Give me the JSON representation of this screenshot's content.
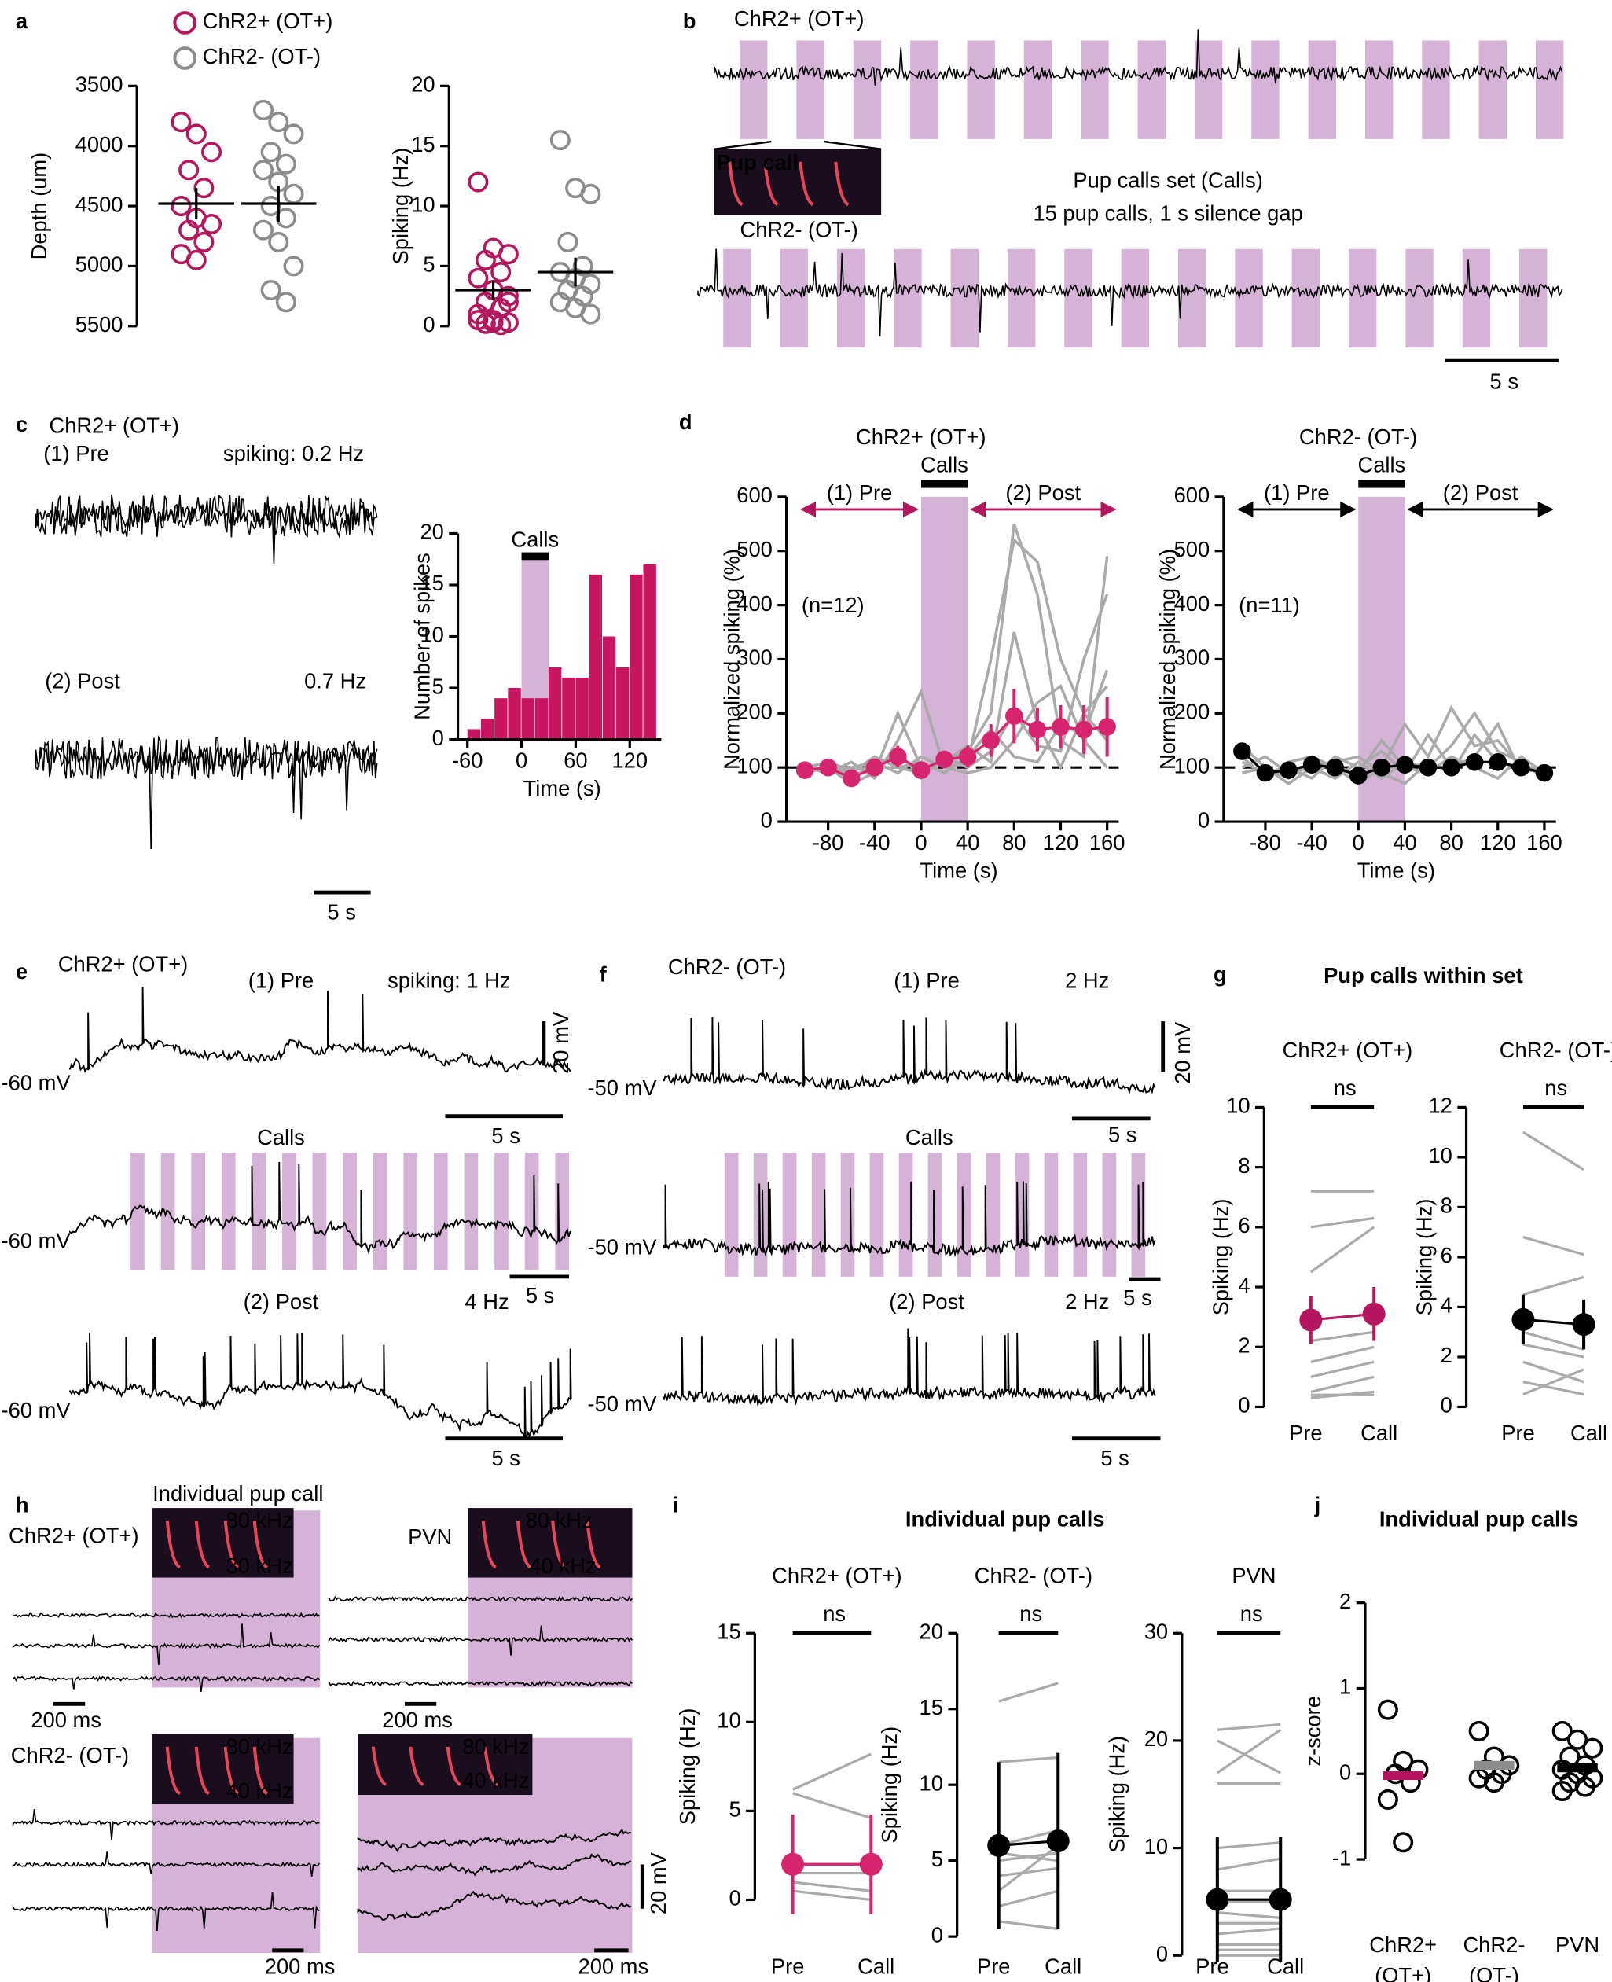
{
  "text": {
    "letters": [
      "a",
      "b",
      "c",
      "d",
      "e",
      "f",
      "g",
      "h",
      "i",
      "j"
    ],
    "b": {
      "ot_plus": "ChR2+ (OT+)",
      "ot_minus": "ChR2- (OT-)",
      "inset": "Pup call",
      "set": "Pup calls set (Calls)",
      "desc": "15 pup calls, 1 s silence gap",
      "scale": "5 s"
    },
    "c": {
      "title": "ChR2+ (OT+)",
      "pre": "(1) Pre",
      "pre_rate": "spiking: 0.2 Hz",
      "post": "(2) Post",
      "post_rate": "0.7 Hz",
      "scale": "5 s"
    },
    "e": {
      "title": "ChR2+ (OT+)",
      "pre": "(1) Pre",
      "pre_rate": "spiking: 1 Hz",
      "vscale": "20 mV",
      "vm": "-60 mV",
      "scale": "5 s",
      "calls": "Calls",
      "post": "(2) Post",
      "post_rate": "4 Hz"
    },
    "f": {
      "title": "ChR2- (OT-)",
      "pre": "(1) Pre",
      "pre_rate": "2 Hz",
      "vscale": "20 mV",
      "vm": "-50 mV",
      "scale": "5 s",
      "calls": "Calls",
      "post": "(2) Post",
      "post_rate": "2 Hz"
    },
    "g": {
      "title": "Pup calls within set"
    },
    "h": {
      "title": "Individual pup call",
      "ot_plus": "ChR2+ (OT+)",
      "ot_minus": "ChR2- (OT-)",
      "pvn": "PVN",
      "hi": "80 kHz",
      "lo30": "30 kHz",
      "lo40": "40 kHz",
      "scale": "200 ms",
      "vscale": "20 mV"
    },
    "i": {
      "title": "Individual pup calls"
    },
    "j": {
      "title": "Individual pup calls"
    }
  },
  "chart_data": [
    {
      "type": "strip",
      "ylabel": "Depth (um)",
      "ylim": [
        3500,
        5500
      ],
      "yticks": [
        3500,
        4000,
        4500,
        5000,
        5500
      ],
      "y_inverted": true,
      "legend": true,
      "series": [
        {
          "name": "ChR2+ (OT+)",
          "color": "#b5175e",
          "values": [
            3800,
            3900,
            4050,
            4200,
            4350,
            4500,
            4600,
            4650,
            4700,
            4800,
            4900,
            4950
          ],
          "mean": 4480,
          "sem": 130
        },
        {
          "name": "ChR2- (OT-)",
          "color": "#8c8c8c",
          "values": [
            3700,
            3800,
            3900,
            4050,
            4150,
            4200,
            4300,
            4400,
            4500,
            4600,
            4700,
            4800,
            5000,
            5200,
            5300
          ],
          "mean": 4480,
          "sem": 150
        }
      ]
    },
    {
      "type": "strip",
      "ylabel": "Spiking (Hz)",
      "ylim": [
        0,
        20
      ],
      "yticks": [
        0,
        5,
        10,
        15,
        20
      ],
      "series": [
        {
          "color": "#b5175e",
          "values": [
            12,
            6.5,
            6,
            5.5,
            4.5,
            4,
            3,
            2.5,
            2,
            1.5,
            1,
            0.5,
            0.3,
            0.2,
            0.1,
            0.5,
            0.3,
            2
          ],
          "mean": 3,
          "sem": 0.8
        },
        {
          "color": "#8c8c8c",
          "values": [
            15.5,
            11.5,
            11,
            7,
            5,
            4.5,
            4,
            3.5,
            3,
            2.5,
            2,
            1.5,
            1
          ],
          "mean": 4.5,
          "sem": 1.2
        }
      ]
    },
    {
      "type": "histogram",
      "ylabel": "Number of spikes",
      "xlabel": "Time (s)",
      "bins": [
        -60,
        -45,
        -30,
        -15,
        0,
        15,
        30,
        45,
        60,
        75,
        90,
        105,
        120,
        135,
        150
      ],
      "counts": [
        1,
        2,
        4,
        5,
        4,
        4,
        7,
        6,
        6,
        16,
        10,
        7,
        16,
        17
      ],
      "color": "#c8155f",
      "xlim": [
        -65,
        155
      ],
      "xticks": [
        -60,
        0,
        60,
        120
      ],
      "ylim": [
        0,
        20
      ],
      "yticks": [
        0,
        5,
        10,
        15,
        20
      ],
      "span": {
        "start": 0,
        "end": 30,
        "label": "Calls",
        "color": "#d4b3d6"
      }
    },
    {
      "type": "line",
      "title": "ChR2+ (OT+)",
      "title_color": "#b5175e",
      "xlabel": "Time (s)",
      "ylabel": "Normalized spiking (%)",
      "xlim": [
        -105,
        170
      ],
      "xticks": [
        -80,
        -40,
        0,
        40,
        80,
        120,
        160
      ],
      "ylim": [
        0,
        600
      ],
      "yticks": [
        0,
        100,
        200,
        300,
        400,
        500,
        600
      ],
      "hline": 100,
      "span": {
        "start": 0,
        "end": 40,
        "label": "Calls",
        "color": "#d4b3d6"
      },
      "annotations": {
        "pre": "(1) Pre",
        "post": "(2) Post",
        "n": "(n=12)"
      },
      "arrow_color": "#b5175e",
      "x": [
        -100,
        -80,
        -60,
        -40,
        -20,
        0,
        20,
        40,
        60,
        80,
        100,
        120,
        140,
        160
      ],
      "series": [
        {
          "color": "#aaaaaa",
          "values": [
            100,
            90,
            110,
            80,
            150,
            240,
            100,
            110,
            300,
            520,
            480,
            300,
            200,
            250
          ]
        },
        {
          "color": "#aaaaaa",
          "values": [
            95,
            100,
            90,
            120,
            100,
            90,
            110,
            130,
            200,
            550,
            420,
            150,
            120,
            490
          ]
        },
        {
          "color": "#aaaaaa",
          "values": [
            100,
            110,
            95,
            100,
            130,
            80,
            120,
            100,
            130,
            200,
            140,
            130,
            300,
            420
          ]
        },
        {
          "color": "#aaaaaa",
          "values": [
            90,
            100,
            70,
            90,
            200,
            100,
            110,
            140,
            110,
            350,
            180,
            100,
            200,
            150
          ]
        },
        {
          "color": "#aaaaaa",
          "values": [
            100,
            90,
            100,
            110,
            90,
            120,
            100,
            90,
            100,
            150,
            220,
            250,
            150,
            100
          ]
        },
        {
          "color": "#aaaaaa",
          "values": [
            105,
            95,
            85,
            100,
            100,
            110,
            90,
            120,
            170,
            120,
            110,
            180,
            160,
            280
          ]
        },
        {
          "color": "#d6246e",
          "values": [
            95,
            100,
            80,
            100,
            120,
            95,
            115,
            120,
            150,
            195,
            170,
            175,
            170,
            175
          ],
          "err": [
            10,
            10,
            12,
            15,
            20,
            15,
            15,
            20,
            30,
            50,
            40,
            40,
            45,
            55
          ]
        }
      ]
    },
    {
      "type": "line",
      "title": "ChR2- (OT-)",
      "title_color": "#000000",
      "xlabel": "Time (s)",
      "ylabel": "Normalized spiking (%)",
      "xlim": [
        -105,
        170
      ],
      "xticks": [
        -80,
        -40,
        0,
        40,
        80,
        120,
        160
      ],
      "ylim": [
        0,
        600
      ],
      "yticks": [
        0,
        100,
        200,
        300,
        400,
        500,
        600
      ],
      "hline": 100,
      "span": {
        "start": 0,
        "end": 40,
        "label": "Calls",
        "color": "#d4b3d6"
      },
      "annotations": {
        "pre": "(1) Pre",
        "post": "(2) Post",
        "n": "(n=11)"
      },
      "arrow_color": "#000000",
      "x": [
        -100,
        -80,
        -60,
        -40,
        -20,
        0,
        20,
        40,
        60,
        80,
        100,
        120,
        140,
        160
      ],
      "series": [
        {
          "color": "#aaaaaa",
          "values": [
            140,
            100,
            80,
            110,
            100,
            70,
            100,
            180,
            120,
            210,
            140,
            150,
            100,
            90
          ]
        },
        {
          "color": "#aaaaaa",
          "values": [
            110,
            90,
            100,
            80,
            120,
            100,
            130,
            90,
            160,
            100,
            120,
            180,
            90,
            100
          ]
        },
        {
          "color": "#aaaaaa",
          "values": [
            100,
            120,
            90,
            100,
            80,
            110,
            80,
            110,
            100,
            140,
            200,
            130,
            110,
            80
          ]
        },
        {
          "color": "#aaaaaa",
          "values": [
            120,
            80,
            110,
            120,
            100,
            90,
            150,
            100,
            90,
            120,
            100,
            80,
            120,
            90
          ]
        },
        {
          "color": "#aaaaaa",
          "values": [
            90,
            100,
            70,
            100,
            110,
            120,
            90,
            70,
            110,
            90,
            160,
            110,
            100,
            100
          ]
        },
        {
          "color": "#000000",
          "values": [
            130,
            90,
            95,
            105,
            100,
            85,
            100,
            105,
            100,
            100,
            110,
            110,
            100,
            90
          ],
          "err": [
            15,
            10,
            10,
            10,
            10,
            10,
            15,
            15,
            15,
            15,
            15,
            15,
            10,
            10
          ]
        }
      ]
    },
    {
      "type": "paired",
      "title": "ChR2+ (OT+)",
      "title_color": "#b5175e",
      "ylabel": "Spiking (Hz)",
      "sig": "ns",
      "categories": [
        "Pre",
        "Call"
      ],
      "ylim": [
        0,
        10
      ],
      "yticks": [
        0,
        2,
        4,
        6,
        8,
        10
      ],
      "color": "#b5175e",
      "pairs": [
        [
          7.2,
          7.2
        ],
        [
          6,
          6.3
        ],
        [
          4.5,
          6
        ],
        [
          2.2,
          2.5
        ],
        [
          1.5,
          2
        ],
        [
          1,
          1.5
        ],
        [
          0.5,
          1
        ],
        [
          0.4,
          0.4
        ],
        [
          0.3,
          0.5
        ]
      ],
      "mean": [
        2.9,
        3.1
      ],
      "err": [
        0.8,
        0.9
      ]
    },
    {
      "type": "paired",
      "title": "ChR2- (OT-)",
      "title_color": "#000000",
      "ylabel": "Spiking (Hz)",
      "sig": "ns",
      "categories": [
        "Pre",
        "Call"
      ],
      "ylim": [
        0,
        12
      ],
      "yticks": [
        0,
        2,
        4,
        6,
        8,
        10,
        12
      ],
      "color": "#000000",
      "pairs": [
        [
          11,
          9.5
        ],
        [
          6.8,
          6.1
        ],
        [
          4.5,
          5.2
        ],
        [
          3,
          2.3
        ],
        [
          2.5,
          2
        ],
        [
          1.8,
          1
        ],
        [
          1,
          0.5
        ],
        [
          0.5,
          1.5
        ]
      ],
      "mean": [
        3.5,
        3.3
      ],
      "err": [
        1,
        1
      ]
    },
    {
      "type": "paired",
      "title": "ChR2+ (OT+)",
      "title_color": "#b5175e",
      "ylabel": "Spiking (Hz)",
      "sig": "ns",
      "categories": [
        "Pre",
        "Call"
      ],
      "ylim": [
        0,
        15
      ],
      "yticks": [
        0,
        5,
        10,
        15
      ],
      "color": "#d6246e",
      "pairs": [
        [
          6.2,
          8.2
        ],
        [
          6,
          4.6
        ],
        [
          2,
          2
        ],
        [
          1.5,
          1.5
        ],
        [
          1,
          0.5
        ],
        [
          0.5,
          0
        ]
      ],
      "mean": [
        2,
        2
      ],
      "err": [
        2.8,
        2.8
      ]
    },
    {
      "type": "paired",
      "title": "ChR2- (OT-)",
      "title_color": "#000000",
      "ylabel": "Spiking (Hz)",
      "sig": "ns",
      "categories": [
        "Pre",
        "Call"
      ],
      "ylim": [
        0,
        20
      ],
      "yticks": [
        0,
        5,
        10,
        15,
        20
      ],
      "color": "#000000",
      "pairs": [
        [
          15.5,
          16.7
        ],
        [
          11.5,
          11.8
        ],
        [
          6,
          7
        ],
        [
          5.5,
          5
        ],
        [
          5,
          5.5
        ],
        [
          4,
          4.5
        ],
        [
          3,
          6
        ],
        [
          2,
          3
        ],
        [
          1,
          0.5
        ]
      ],
      "mean": [
        6,
        6.3
      ],
      "err": [
        5.5,
        5.8
      ]
    },
    {
      "type": "paired",
      "title": "PVN",
      "title_color": "#000000",
      "ylabel": "Spiking (Hz)",
      "sig": "ns",
      "categories": [
        "Pre",
        "Call"
      ],
      "ylim": [
        0,
        30
      ],
      "yticks": [
        0,
        10,
        20,
        30
      ],
      "color": "#000000",
      "pairs": [
        [
          21,
          21.5
        ],
        [
          20,
          17
        ],
        [
          17,
          21
        ],
        [
          16,
          16
        ],
        [
          10,
          10.5
        ],
        [
          8,
          9
        ],
        [
          6,
          6
        ],
        [
          5,
          5
        ],
        [
          4,
          3.5
        ],
        [
          3,
          3
        ],
        [
          2,
          2.5
        ],
        [
          1,
          1
        ],
        [
          0.5,
          0.5
        ],
        [
          0,
          0
        ]
      ],
      "mean": [
        5.2,
        5.2
      ],
      "err": [
        5.8,
        5.8
      ]
    },
    {
      "type": "strip",
      "ylabel": "z-score",
      "ylim": [
        -1,
        2
      ],
      "yticks": [
        -1,
        0,
        1,
        2
      ],
      "categories": [
        [
          "ChR2+",
          "(OT+)"
        ],
        [
          "ChR2-",
          "(OT-)"
        ],
        [
          "PVN"
        ]
      ],
      "category_colors": [
        "#b5175e",
        "#000000",
        "#000000"
      ],
      "series": [
        {
          "color": "#000000",
          "mean_color": "#b5175e",
          "values": [
            0.75,
            0.15,
            0.05,
            0,
            -0.1,
            -0.3,
            -0.8
          ],
          "mean": -0.02
        },
        {
          "color": "#000000",
          "mean_color": "#8c8c8c",
          "values": [
            0.5,
            0.2,
            0.1,
            0.05,
            0,
            -0.05,
            -0.1
          ],
          "mean": 0.1
        },
        {
          "color": "#000000",
          "mean_color": "#000000",
          "values": [
            0.5,
            0.4,
            0.3,
            0.2,
            0.1,
            0.05,
            0,
            -0.05,
            -0.1,
            -0.15,
            -0.2
          ],
          "mean": 0.07
        }
      ]
    }
  ]
}
